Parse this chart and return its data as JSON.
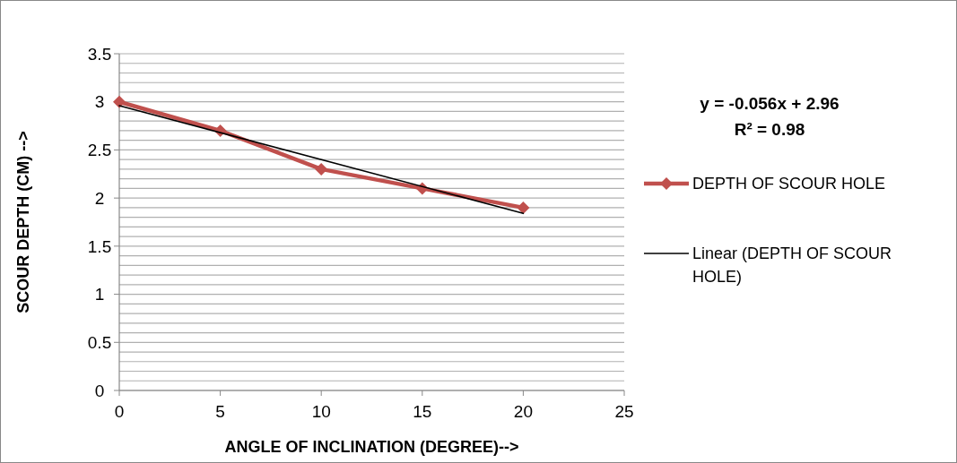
{
  "chart_data": {
    "type": "line",
    "xlabel": "ANGLE OF INCLINATION (DEGREE)-->",
    "ylabel": "SCOUR DEPTH (CM) -->",
    "x": [
      0,
      5,
      10,
      15,
      20
    ],
    "series": [
      {
        "name": "DEPTH OF SCOUR HOLE",
        "color": "#c0504d",
        "values": [
          3,
          2.7,
          2.3,
          2.1,
          1.9
        ],
        "marker": "diamond"
      },
      {
        "name": "Linear (DEPTH OF SCOUR HOLE)",
        "type": "line",
        "color": "#000000",
        "x": [
          0,
          20
        ],
        "values": [
          2.96,
          1.84
        ],
        "marker": "none"
      }
    ],
    "xlim": [
      0,
      25
    ],
    "xticks": [
      0,
      5,
      10,
      15,
      20,
      25
    ],
    "ylim": [
      0,
      3.5
    ],
    "yticks": [
      0,
      {
        "value": 0.1,
        "label": null
      },
      {
        "value": 0.2,
        "label": null
      },
      {
        "value": 0.3,
        "label": null
      },
      {
        "value": 0.4,
        "label": null
      },
      0.5,
      {
        "value": 0.6,
        "label": null
      },
      {
        "value": 0.7,
        "label": null
      },
      {
        "value": 0.8,
        "label": null
      },
      {
        "value": 0.9,
        "label": null
      },
      1,
      {
        "value": 1.1,
        "label": null
      },
      {
        "value": 1.2,
        "label": null
      },
      {
        "value": 1.3,
        "label": null
      },
      {
        "value": 1.4,
        "label": null
      },
      1.5,
      {
        "value": 1.6,
        "label": null
      },
      {
        "value": 1.7,
        "label": null
      },
      {
        "value": 1.8,
        "label": null
      },
      {
        "value": 1.9,
        "label": null
      },
      2,
      {
        "value": 2.1,
        "label": null
      },
      {
        "value": 2.2,
        "label": null
      },
      {
        "value": 2.3,
        "label": null
      },
      {
        "value": 2.4,
        "label": null
      },
      2.5,
      {
        "value": 2.6,
        "label": null
      },
      {
        "value": 2.7,
        "label": null
      },
      {
        "value": 2.8,
        "label": null
      },
      {
        "value": 2.9,
        "label": null
      },
      3,
      {
        "value": 3.1,
        "label": null
      },
      {
        "value": 3.2,
        "label": null
      },
      {
        "value": 3.3,
        "label": null
      },
      {
        "value": 3.4,
        "label": null
      },
      3.5
    ],
    "grid": "y",
    "legend": "right",
    "annotations": [
      "y = -0.056x + 2.96",
      "R² = 0.98"
    ]
  }
}
